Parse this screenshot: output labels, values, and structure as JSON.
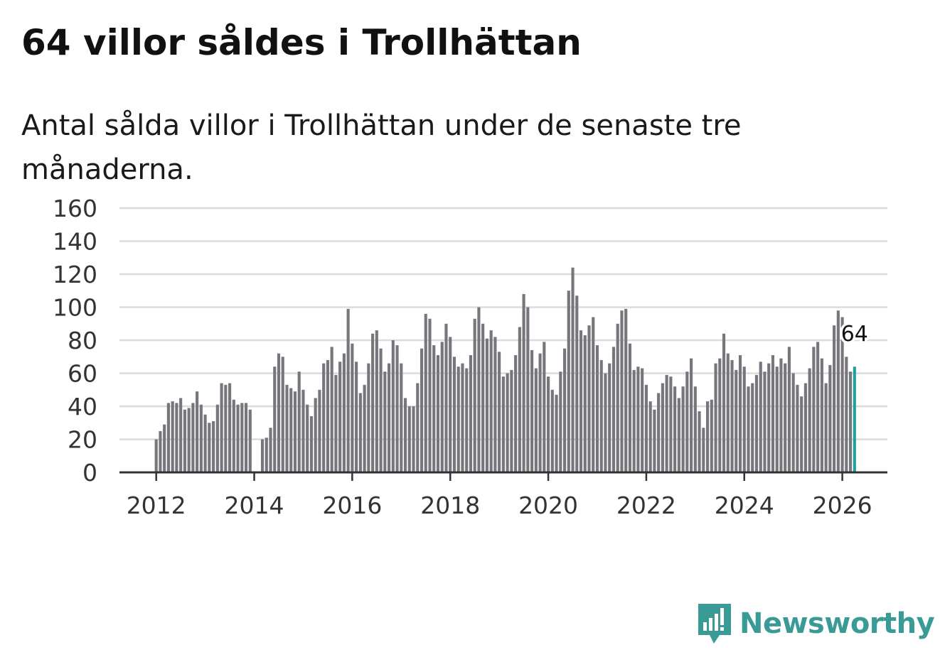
{
  "title": "64 villor såldes i Trollhättan",
  "subtitle": "Antal sålda villor i Trollhättan under de senaste tre månaderna.",
  "brand": {
    "name": "Newsworthy",
    "color": "#3a9b96",
    "icon": "newsworthy-logo-icon"
  },
  "colors": {
    "bar": "#77767c",
    "highlight": "#1fa19c",
    "grid": "#dcdcdc",
    "axis": "#333333"
  },
  "chart_data": {
    "type": "bar",
    "title": "64 villor såldes i Trollhättan",
    "xlabel": "",
    "ylabel": "",
    "ylim": [
      0,
      160
    ],
    "yticks": [
      0,
      20,
      40,
      60,
      80,
      100,
      120,
      140,
      160
    ],
    "xticks": [
      "2012",
      "2014",
      "2016",
      "2018",
      "2020",
      "2022",
      "2024",
      "2026"
    ],
    "xlim": [
      2011.25,
      2026.92
    ],
    "start_year": 2012,
    "start_month": 1,
    "grid": true,
    "highlight_label": "64",
    "values": [
      20,
      25,
      29,
      42,
      43,
      42,
      45,
      38,
      39,
      42,
      49,
      41,
      35,
      30,
      31,
      41,
      54,
      53,
      54,
      44,
      41,
      42,
      42,
      38,
      null,
      null,
      20,
      21,
      27,
      64,
      72,
      70,
      53,
      51,
      49,
      61,
      50,
      41,
      34,
      45,
      50,
      66,
      68,
      76,
      59,
      67,
      72,
      99,
      78,
      67,
      48,
      53,
      66,
      84,
      86,
      75,
      61,
      66,
      80,
      77,
      66,
      45,
      40,
      40,
      54,
      75,
      96,
      93,
      77,
      71,
      79,
      90,
      82,
      70,
      64,
      66,
      63,
      71,
      93,
      100,
      90,
      81,
      86,
      82,
      73,
      58,
      60,
      62,
      71,
      88,
      108,
      100,
      74,
      63,
      72,
      79,
      58,
      50,
      47,
      61,
      75,
      110,
      124,
      107,
      86,
      83,
      89,
      94,
      77,
      68,
      60,
      66,
      76,
      90,
      98,
      99,
      78,
      62,
      64,
      63,
      53,
      43,
      38,
      48,
      54,
      59,
      58,
      52,
      45,
      52,
      61,
      69,
      52,
      37,
      27,
      43,
      44,
      66,
      69,
      84,
      72,
      68,
      62,
      71,
      64,
      52,
      54,
      59,
      67,
      61,
      66,
      71,
      64,
      69,
      66,
      76,
      60,
      53,
      46,
      54,
      63,
      76,
      79,
      69,
      54,
      65,
      89,
      98,
      94,
      70,
      61,
      64
    ]
  }
}
